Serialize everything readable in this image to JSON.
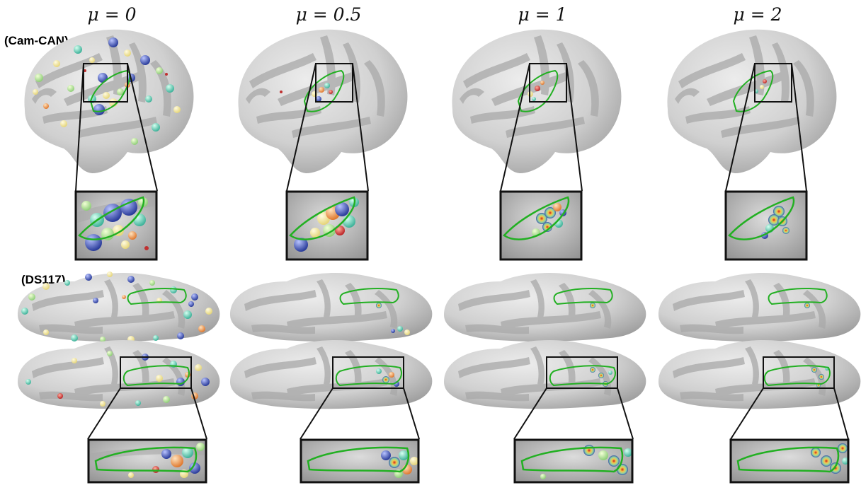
{
  "columns": [
    {
      "label": "μ = 0"
    },
    {
      "label": "μ = 0.5"
    },
    {
      "label": "μ = 1"
    },
    {
      "label": "μ = 2"
    }
  ],
  "rows": [
    {
      "label": "(Cam-CAN)"
    },
    {
      "label": "(DS117)"
    }
  ],
  "colors": {
    "surface_light": "#d4d4d4",
    "surface_dark": "#a9a9a9",
    "roi_outline": "#22b022",
    "frame": "#111111"
  }
}
